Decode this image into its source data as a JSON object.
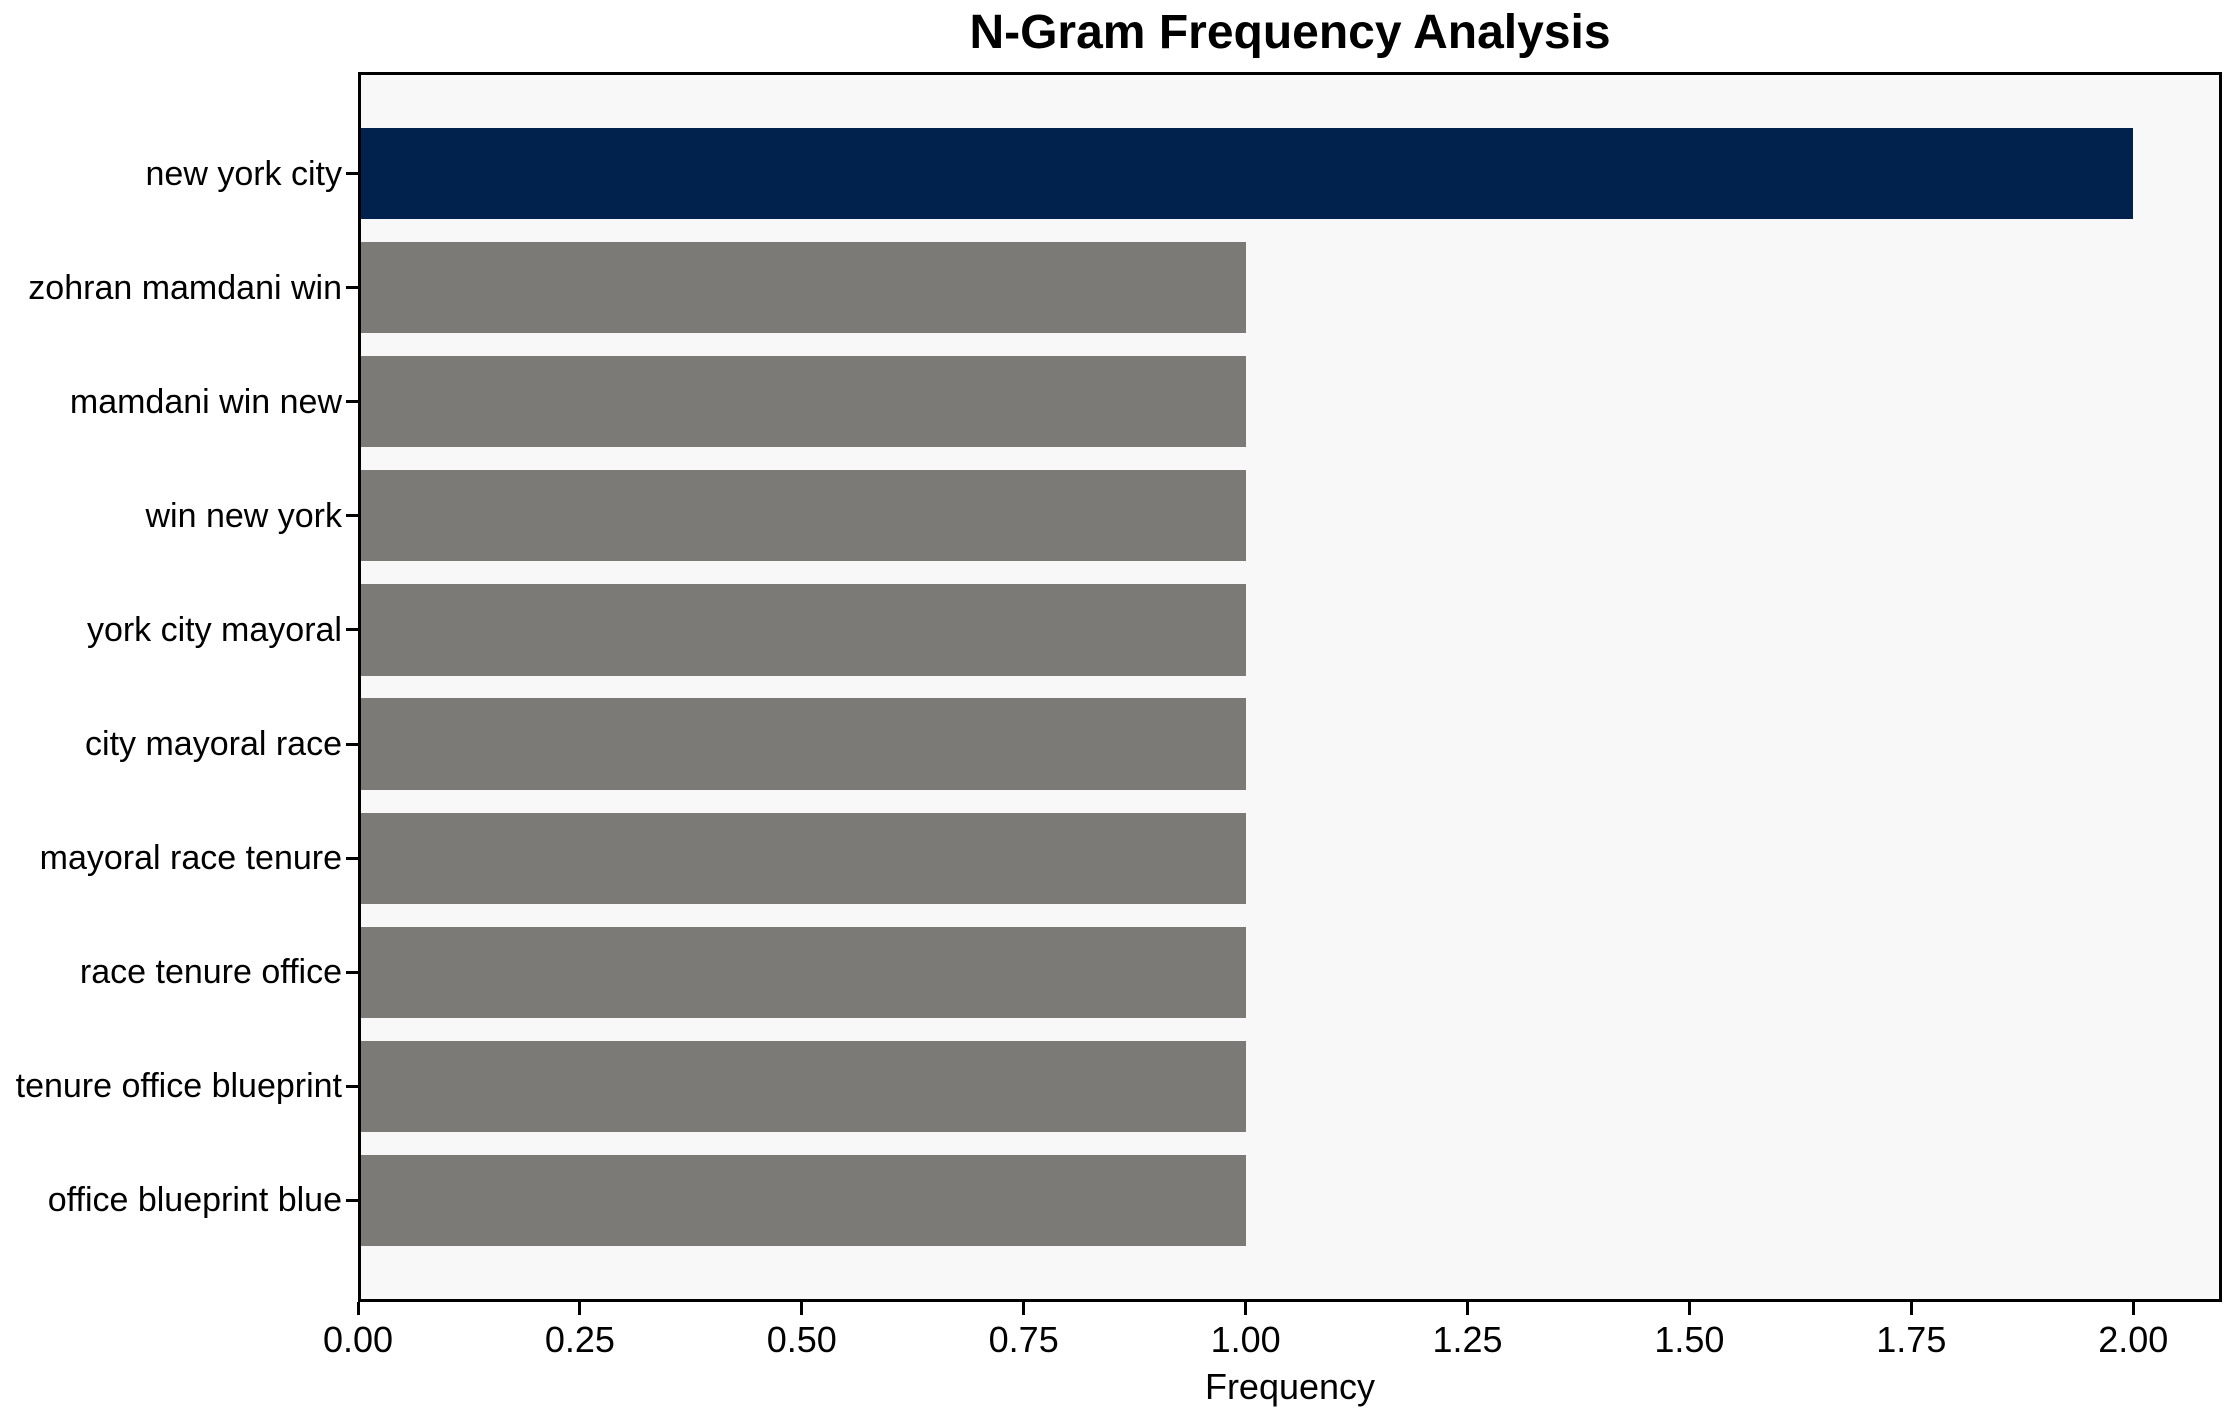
{
  "chart_data": {
    "type": "bar",
    "orientation": "horizontal",
    "title": "N-Gram Frequency Analysis",
    "xlabel": "Frequency",
    "ylabel": "",
    "categories": [
      "new york city",
      "zohran mamdani win",
      "mamdani win new",
      "win new york",
      "york city mayoral",
      "city mayoral race",
      "mayoral race tenure",
      "race tenure office",
      "tenure office blueprint",
      "office blueprint blue"
    ],
    "values": [
      2,
      1,
      1,
      1,
      1,
      1,
      1,
      1,
      1,
      1
    ],
    "xlim": [
      0,
      2.1
    ],
    "x_ticks": [
      "0.00",
      "0.25",
      "0.50",
      "0.75",
      "1.00",
      "1.25",
      "1.50",
      "1.75",
      "2.00"
    ],
    "x_tick_values": [
      0,
      0.25,
      0.5,
      0.75,
      1.0,
      1.25,
      1.5,
      1.75,
      2.0
    ],
    "highlight_index": 0,
    "colors": {
      "highlight_bar": "#00224d",
      "default_bar": "#7b7a77",
      "plot_background": "#f8f8f8",
      "figure_background": "#ffffff",
      "axis": "#000000",
      "text": "#000000"
    },
    "grid": false,
    "legend": null
  }
}
